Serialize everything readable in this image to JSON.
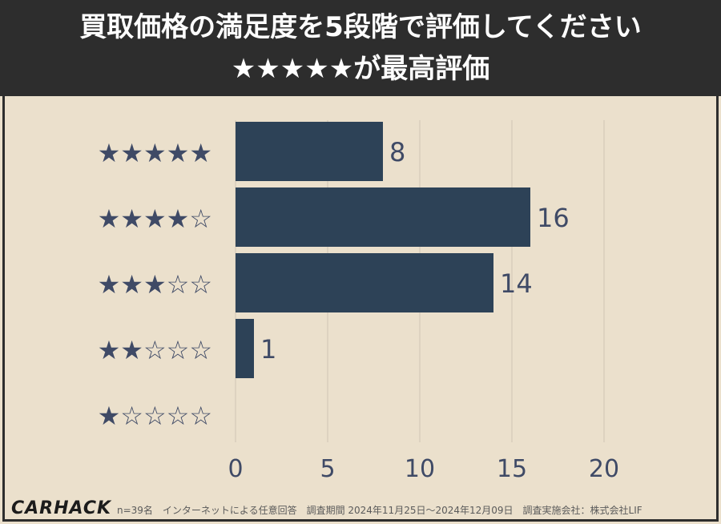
{
  "header": {
    "line1": "買取価格の満足度を5段階で評価してください",
    "line2": "★★★★★が最高評価"
  },
  "chart_data": {
    "type": "bar",
    "orientation": "horizontal",
    "categories": [
      "★★★★★",
      "★★★★☆",
      "★★★☆☆",
      "★★☆☆☆",
      "★☆☆☆☆"
    ],
    "values": [
      8,
      16,
      14,
      1,
      null
    ],
    "data_labels": [
      "8",
      "16",
      "14",
      "1",
      ""
    ],
    "xlim": [
      0,
      20
    ],
    "xticks": [
      "0",
      "5",
      "10",
      "15",
      "20"
    ],
    "grid": "vertical",
    "colors": {
      "bar": "#2d4257",
      "star": "#3f4a66",
      "tick": "#3f4a66",
      "grid": "#cfc5b3"
    }
  },
  "footer": {
    "logo": "CARHACK",
    "note": "n=39名　インターネットによる任意回答　調査期間 2024年11月25日〜2024年12月09日　調査実施会社：株式会社LIF"
  }
}
